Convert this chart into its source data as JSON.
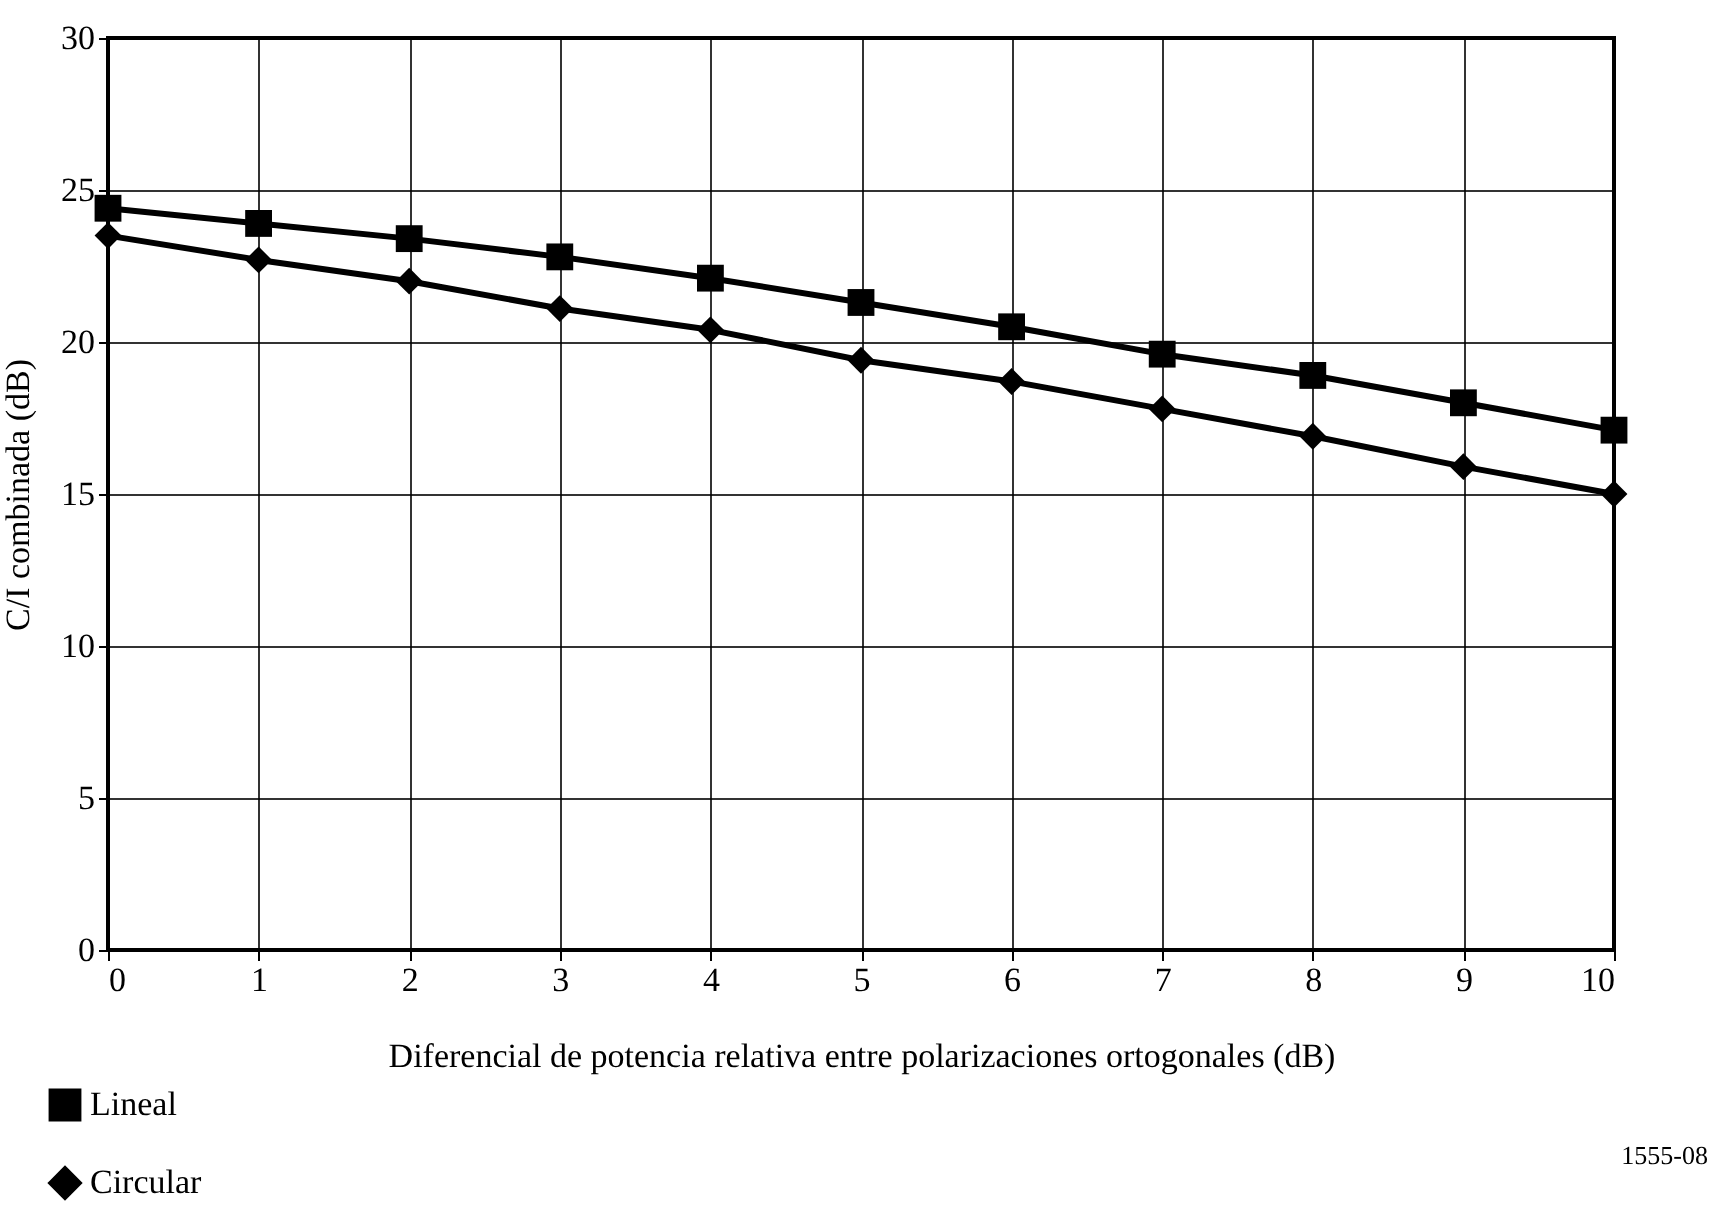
{
  "chart_data": {
    "type": "line",
    "xlabel": "Diferencial de potencia relativa entre polarizaciones ortogonales (dB)",
    "ylabel": "C/I combinada (dB)",
    "x": [
      0,
      1,
      2,
      3,
      4,
      5,
      6,
      7,
      8,
      9,
      10
    ],
    "series": [
      {
        "name": "Lineal",
        "color": "#000000",
        "marker": "square",
        "values": [
          24.4,
          23.9,
          23.4,
          22.8,
          22.1,
          21.3,
          20.5,
          19.6,
          18.9,
          18.0,
          17.1
        ]
      },
      {
        "name": "Circular",
        "color": "#000000",
        "marker": "diamond",
        "values": [
          23.5,
          22.7,
          22.0,
          21.1,
          20.4,
          19.4,
          18.7,
          17.8,
          16.9,
          15.9,
          15.0
        ]
      }
    ],
    "xlim": [
      0,
      10
    ],
    "xticks": [
      0,
      1,
      2,
      3,
      4,
      5,
      6,
      7,
      8,
      9,
      10
    ],
    "ylim": [
      0,
      30
    ],
    "yticks": [
      0,
      5,
      10,
      15,
      20,
      25,
      30
    ],
    "grid": true,
    "legend": "bottom left",
    "line_style": "solid",
    "annotations": [
      "1555-08"
    ]
  }
}
